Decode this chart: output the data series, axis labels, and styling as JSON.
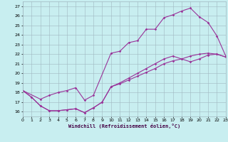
{
  "xlabel": "Windchill (Refroidissement éolien,°C)",
  "bg_color": "#c8eef0",
  "grid_color": "#a0b8c0",
  "line_color": "#993399",
  "xlim": [
    0,
    23
  ],
  "ylim": [
    15.5,
    27.5
  ],
  "yticks": [
    16,
    17,
    18,
    19,
    20,
    21,
    22,
    23,
    24,
    25,
    26,
    27
  ],
  "xticks": [
    0,
    1,
    2,
    3,
    4,
    5,
    6,
    7,
    8,
    9,
    10,
    11,
    12,
    13,
    14,
    15,
    16,
    17,
    18,
    19,
    20,
    21,
    22,
    23
  ],
  "line1_x": [
    0,
    1,
    2,
    3,
    4,
    5,
    6,
    7,
    8,
    9,
    10,
    11,
    12,
    13,
    14,
    15,
    16,
    17,
    18,
    19,
    20,
    21,
    22,
    23
  ],
  "line1_y": [
    18.2,
    17.5,
    16.6,
    16.1,
    16.1,
    16.2,
    16.3,
    15.9,
    16.4,
    17.0,
    18.6,
    19.0,
    19.5,
    20.0,
    20.5,
    21.0,
    21.5,
    21.8,
    21.5,
    21.2,
    21.5,
    21.9,
    22.0,
    21.7
  ],
  "line2_x": [
    0,
    2,
    3,
    4,
    5,
    6,
    7,
    8,
    10,
    11,
    12,
    13,
    14,
    15,
    16,
    17,
    18,
    19,
    20,
    21,
    22,
    23
  ],
  "line2_y": [
    18.2,
    17.3,
    17.7,
    18.0,
    18.2,
    18.5,
    17.2,
    17.7,
    22.1,
    22.3,
    23.2,
    23.4,
    24.6,
    24.6,
    25.8,
    26.1,
    26.5,
    26.8,
    25.9,
    25.3,
    23.9,
    21.8
  ],
  "line3_x": [
    0,
    1,
    2,
    3,
    4,
    5,
    6,
    7,
    8,
    9,
    10,
    11,
    12,
    13,
    14,
    15,
    16,
    17,
    18,
    19,
    20,
    21,
    22,
    23
  ],
  "line3_y": [
    18.2,
    17.5,
    16.6,
    16.1,
    16.1,
    16.2,
    16.3,
    15.9,
    16.4,
    17.0,
    18.6,
    18.9,
    19.3,
    19.7,
    20.1,
    20.5,
    21.0,
    21.3,
    21.5,
    21.8,
    22.0,
    22.1,
    22.0,
    21.7
  ]
}
